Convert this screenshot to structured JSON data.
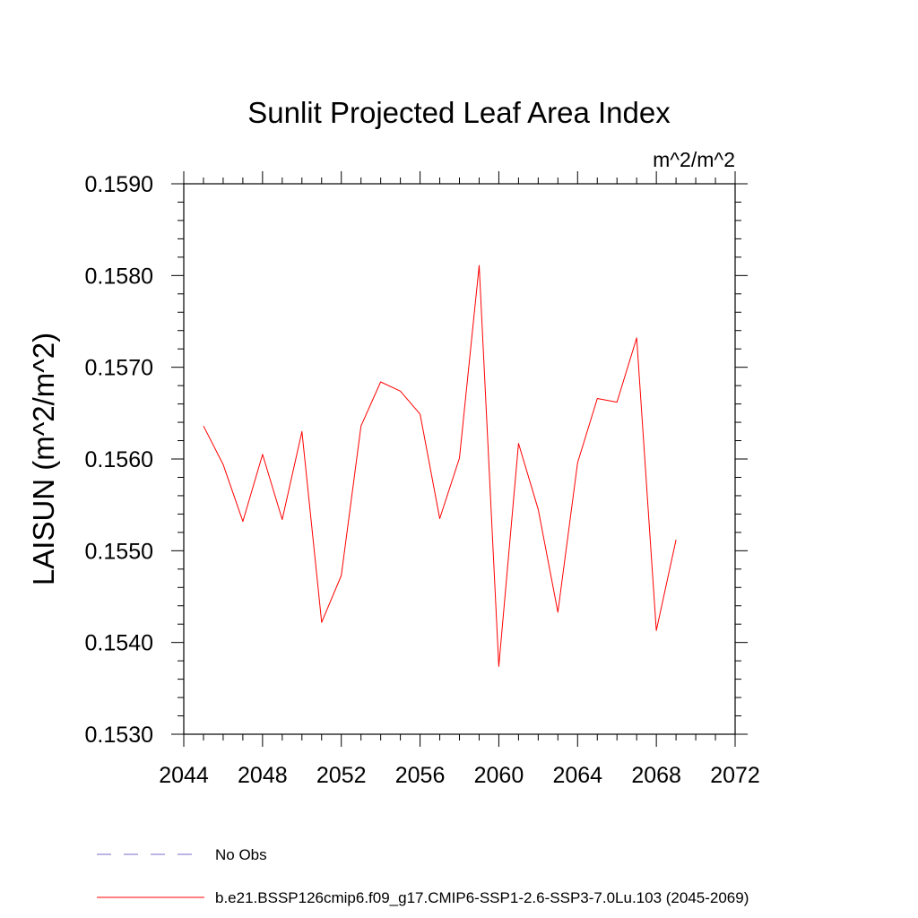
{
  "chart_data": {
    "type": "line",
    "title": "Sunlit Projected Leaf Area Index",
    "units_label": "m^2/m^2",
    "ylabel": "LAISUN  (m^2/m^2)",
    "xlabel": "",
    "xlim": [
      2044,
      2072
    ],
    "ylim": [
      0.153,
      0.159
    ],
    "x_ticks": [
      2044,
      2048,
      2052,
      2056,
      2060,
      2064,
      2068,
      2072
    ],
    "x_tick_labels": [
      "2044",
      "2048",
      "2052",
      "2056",
      "2060",
      "2064",
      "2068",
      "2072"
    ],
    "y_ticks": [
      0.153,
      0.154,
      0.155,
      0.156,
      0.157,
      0.158,
      0.159
    ],
    "y_tick_labels": [
      "0.1530",
      "0.1540",
      "0.1550",
      "0.1560",
      "0.1570",
      "0.1580",
      "0.1590"
    ],
    "grid": false,
    "legend_position": "bottom",
    "series": [
      {
        "name": "b.e21.BSSP126cmip6.f09_g17.CMIP6-SSP1-2.6-SSP3-7.0Lu.103 (2045-2069)",
        "color": "#ff0000",
        "x": [
          2045,
          2046,
          2047,
          2048,
          2049,
          2050,
          2051,
          2052,
          2053,
          2054,
          2055,
          2056,
          2057,
          2058,
          2059,
          2060,
          2061,
          2062,
          2063,
          2064,
          2065,
          2066,
          2067,
          2068,
          2069
        ],
        "values": [
          0.15636,
          0.15594,
          0.15532,
          0.15605,
          0.15534,
          0.1563,
          0.15422,
          0.15473,
          0.15636,
          0.15684,
          0.15674,
          0.15649,
          0.15535,
          0.15601,
          0.15811,
          0.15374,
          0.15617,
          0.15545,
          0.15433,
          0.15596,
          0.15666,
          0.15662,
          0.15732,
          0.15413,
          0.15512
        ]
      }
    ],
    "legend": [
      {
        "label": "No Obs",
        "color": "#7b68c8",
        "style": "dashed"
      },
      {
        "label": "b.e21.BSSP126cmip6.f09_g17.CMIP6-SSP1-2.6-SSP3-7.0Lu.103 (2045-2069)",
        "color": "#ff0000",
        "style": "solid"
      }
    ]
  }
}
